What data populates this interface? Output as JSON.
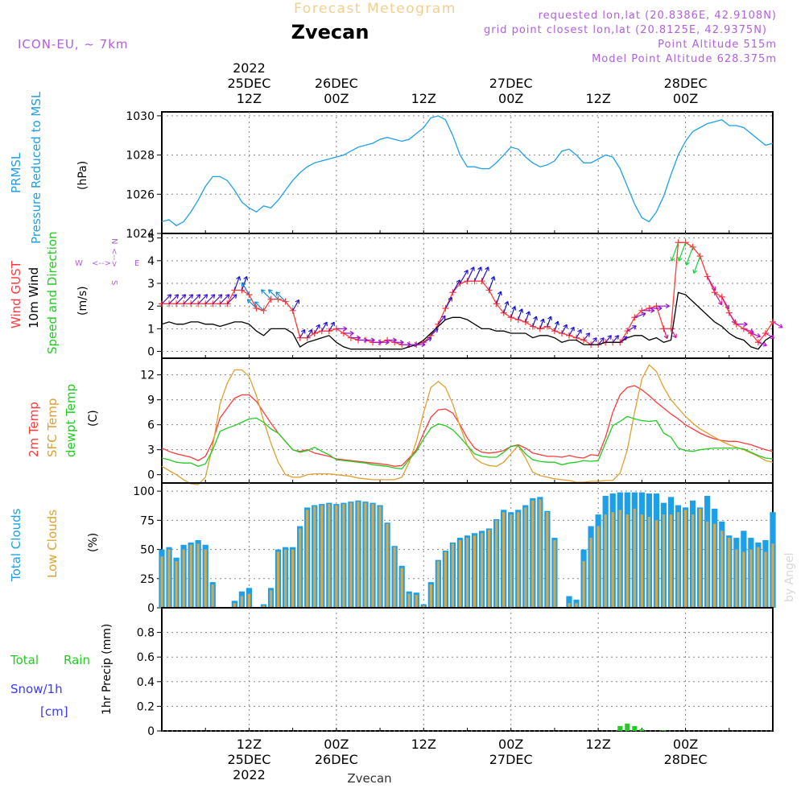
{
  "header": {
    "product_title": "Forecast Meteogram",
    "location": "Zvecan",
    "model": "ICON-EU, ~ 7km",
    "requested": "requested lon,lat (20.8386E, 42.9108N)",
    "grid_point": "grid point closest lon,lat (20.8125E, 42.9375N)",
    "point_altitude": "Point Altitude 515m",
    "model_altitude": "Model Point Altitude 628.375m",
    "footer_location": "Zvecan",
    "watermark": "by Angel"
  },
  "colors": {
    "pressure": "#1ea0e8",
    "gust": "#ff3a3a",
    "wind10m": "#000000",
    "direction": "#22cc22",
    "temp2m": "#ff3a3a",
    "sfc": "#e0a030",
    "dew": "#22cc22",
    "total_cloud": "#1ea0e8",
    "low_cloud": "#d8a848",
    "rain": "#22cc22",
    "snow": "#3a3aff",
    "header_purple": "#b060e0"
  },
  "time_axis": {
    "top_labels": [
      {
        "time": 12,
        "lines": [
          "2022",
          "25DEC",
          "12Z"
        ]
      },
      {
        "time": 24,
        "lines": [
          "26DEC",
          "00Z"
        ]
      },
      {
        "time": 36,
        "lines": [
          "12Z"
        ]
      },
      {
        "time": 48,
        "lines": [
          "27DEC",
          "00Z"
        ]
      },
      {
        "time": 60,
        "lines": [
          "12Z"
        ]
      },
      {
        "time": 72,
        "lines": [
          "28DEC",
          "00Z"
        ]
      }
    ],
    "bottom_labels": [
      {
        "time": 12,
        "lines": [
          "12Z",
          "25DEC",
          "2022"
        ]
      },
      {
        "time": 24,
        "lines": [
          "00Z",
          "26DEC"
        ]
      },
      {
        "time": 36,
        "lines": [
          "12Z"
        ]
      },
      {
        "time": 48,
        "lines": [
          "00Z",
          "27DEC"
        ]
      },
      {
        "time": 60,
        "lines": [
          "12Z"
        ]
      },
      {
        "time": 72,
        "lines": [
          "00Z",
          "28DEC"
        ]
      }
    ]
  },
  "panels": {
    "pressure": {
      "labels": [
        "PRMSL",
        "Pressure Reduced to MSL"
      ],
      "unit": "(hPa)"
    },
    "wind": {
      "labels": [
        "Wind GUST",
        "10m Wind",
        "Speed and Direction"
      ],
      "unit": "(m/s)",
      "compass": {
        "n": "N",
        "s": "S",
        "w": "W",
        "e": "E"
      }
    },
    "temp": {
      "labels": [
        "2m Temp",
        "SFC Temp",
        "dewpt Temp"
      ],
      "unit": "(C)"
    },
    "cloud": {
      "labels": [
        "Total Clouds",
        "Low Clouds"
      ],
      "unit": "(%)"
    },
    "precip": {
      "labels": [
        "Total",
        "Rain",
        "Snow/1h",
        "[cm]"
      ],
      "unit": "1hr Precip (mm)"
    }
  },
  "chart_data": [
    {
      "type": "line",
      "title": "PRMSL Pressure Reduced to MSL",
      "ylabel": "(hPa)",
      "ylim": [
        1024,
        1030.2
      ],
      "yticks": [
        1024,
        1026,
        1028,
        1030
      ],
      "x_start_hour": 0,
      "x_step_hours": 1,
      "series": [
        {
          "name": "PRMSL",
          "color": "#1ea0e8",
          "values": [
            1024.6,
            1024.7,
            1024.4,
            1024.6,
            1025.1,
            1025.7,
            1026.4,
            1026.9,
            1026.9,
            1026.7,
            1026.2,
            1025.6,
            1025.3,
            1025.1,
            1025.4,
            1025.3,
            1025.7,
            1026.2,
            1026.7,
            1027.1,
            1027.4,
            1027.6,
            1027.7,
            1027.8,
            1027.9,
            1028.0,
            1028.2,
            1028.4,
            1028.5,
            1028.6,
            1028.8,
            1028.9,
            1028.8,
            1028.7,
            1028.8,
            1029.1,
            1029.4,
            1029.9,
            1030.0,
            1029.8,
            1029.0,
            1028.0,
            1027.4,
            1027.4,
            1027.3,
            1027.3,
            1027.6,
            1028.0,
            1028.4,
            1028.3,
            1027.9,
            1027.6,
            1027.4,
            1027.5,
            1027.7,
            1028.2,
            1028.3,
            1028.0,
            1027.6,
            1027.6,
            1027.8,
            1028.0,
            1027.9,
            1027.3,
            1026.4,
            1025.5,
            1024.8,
            1024.6,
            1025.1,
            1025.9,
            1027.0,
            1028.0,
            1028.7,
            1029.2,
            1029.4,
            1029.6,
            1029.7,
            1029.8,
            1029.5,
            1029.5,
            1029.4,
            1029.1,
            1028.8,
            1028.5,
            1028.6
          ]
        }
      ]
    },
    {
      "type": "line",
      "title": "Wind GUST / 10m Wind Speed and Direction",
      "ylabel": "(m/s)",
      "ylim": [
        -0.3,
        5.2
      ],
      "yticks": [
        0,
        1,
        2,
        3,
        4,
        5
      ],
      "x_start_hour": 0,
      "x_step_hours": 1,
      "series": [
        {
          "name": "Wind GUST",
          "color": "#ff3a3a",
          "marker": "+",
          "values": [
            2.1,
            2.1,
            2.1,
            2.1,
            2.1,
            2.1,
            2.1,
            2.1,
            2.1,
            2.1,
            2.7,
            2.7,
            2.5,
            1.9,
            1.8,
            2.3,
            2.3,
            2.2,
            1.8,
            0.6,
            0.6,
            0.8,
            0.9,
            0.9,
            1.0,
            0.8,
            0.6,
            0.5,
            0.5,
            0.4,
            0.4,
            0.5,
            0.4,
            0.3,
            0.3,
            0.3,
            0.4,
            0.7,
            1.2,
            1.9,
            2.6,
            3.0,
            3.1,
            3.1,
            3.1,
            2.7,
            2.1,
            1.7,
            1.5,
            1.4,
            1.3,
            1.1,
            1.0,
            1.1,
            0.9,
            0.8,
            0.7,
            0.6,
            0.5,
            0.3,
            0.3,
            0.4,
            0.4,
            0.4,
            0.9,
            1.5,
            1.8,
            1.9,
            2.0,
            1.0,
            1.0,
            4.8,
            4.8,
            4.6,
            4.2,
            3.3,
            2.6,
            2.4,
            1.7,
            1.2,
            1.0,
            0.8,
            0.4,
            0.8,
            1.3
          ]
        },
        {
          "name": "10m Wind",
          "color": "#000000",
          "values": [
            1.2,
            1.3,
            1.2,
            1.2,
            1.3,
            1.3,
            1.2,
            1.2,
            1.1,
            1.2,
            1.3,
            1.3,
            1.2,
            0.9,
            0.7,
            1.0,
            1.0,
            1.0,
            0.8,
            0.2,
            0.4,
            0.5,
            0.6,
            0.7,
            0.4,
            0.2,
            0.1,
            0.1,
            0.1,
            0.1,
            0.1,
            0.1,
            0.1,
            0.1,
            0.2,
            0.3,
            0.5,
            0.8,
            1.1,
            1.4,
            1.5,
            1.5,
            1.4,
            1.2,
            1.0,
            1.0,
            0.9,
            0.9,
            0.8,
            0.8,
            0.8,
            0.6,
            0.7,
            0.7,
            0.6,
            0.4,
            0.5,
            0.5,
            0.3,
            0.3,
            0.3,
            0.4,
            0.4,
            0.4,
            0.6,
            0.7,
            0.7,
            0.5,
            0.6,
            0.4,
            0.5,
            2.6,
            2.5,
            2.2,
            1.9,
            1.6,
            1.3,
            1.1,
            0.8,
            0.6,
            0.5,
            0.2,
            0.1,
            0.5,
            0.7
          ]
        }
      ],
      "direction_arrows_deg": [
        225,
        225,
        225,
        225,
        225,
        225,
        225,
        225,
        225,
        225,
        200,
        200,
        150,
        135,
        135,
        135,
        135,
        135,
        210,
        210,
        210,
        210,
        210,
        210,
        270,
        270,
        270,
        270,
        270,
        270,
        270,
        270,
        270,
        270,
        270,
        270,
        240,
        225,
        220,
        210,
        210,
        210,
        205,
        205,
        205,
        200,
        200,
        200,
        200,
        200,
        200,
        200,
        200,
        200,
        200,
        210,
        210,
        210,
        220,
        220,
        220,
        220,
        220,
        230,
        240,
        250,
        270,
        270,
        270,
        340,
        330,
        20,
        20,
        20,
        20,
        330,
        330,
        330,
        330,
        270,
        290,
        290,
        290,
        300,
        300
      ]
    },
    {
      "type": "line",
      "title": "2m Temp / SFC Temp / dewpt Temp",
      "ylabel": "(C)",
      "ylim": [
        -1,
        14
      ],
      "yticks": [
        0,
        3,
        6,
        9,
        12
      ],
      "x_start_hour": 0,
      "x_step_hours": 1,
      "series": [
        {
          "name": "2m Temp",
          "color": "#ff3a3a",
          "values": [
            3.2,
            2.8,
            2.5,
            2.3,
            2.1,
            1.7,
            2.2,
            4.0,
            6.8,
            8.0,
            9.2,
            9.6,
            9.6,
            8.8,
            7.5,
            6.2,
            5.0,
            4.0,
            3.0,
            2.8,
            3.0,
            2.6,
            2.4,
            2.2,
            1.9,
            1.8,
            1.7,
            1.6,
            1.5,
            1.4,
            1.3,
            1.2,
            1.0,
            1.1,
            2.0,
            3.0,
            5.0,
            6.9,
            7.8,
            7.9,
            7.4,
            6.0,
            4.4,
            3.2,
            2.7,
            2.6,
            2.7,
            2.9,
            3.4,
            3.6,
            3.2,
            2.6,
            2.4,
            2.2,
            2.2,
            2.1,
            2.3,
            2.1,
            2.0,
            2.4,
            2.3,
            4.5,
            7.5,
            9.6,
            10.5,
            10.7,
            10.2,
            9.5,
            8.7,
            8.0,
            7.3,
            6.7,
            6.0,
            5.5,
            5.0,
            4.6,
            4.3,
            4.1,
            4.0,
            4.0,
            3.8,
            3.6,
            3.3,
            3.0,
            2.8
          ]
        },
        {
          "name": "SFC Temp",
          "color": "#e0a030",
          "values": [
            1.0,
            0.5,
            0.0,
            -0.6,
            -1.1,
            -1.2,
            -0.3,
            3.5,
            8.5,
            11.0,
            12.6,
            12.6,
            11.8,
            9.5,
            6.5,
            3.8,
            1.5,
            0.0,
            -0.3,
            -0.3,
            0.0,
            0.1,
            0.1,
            0.1,
            0.0,
            -0.1,
            -0.2,
            -0.4,
            -0.5,
            -0.6,
            -0.6,
            -0.6,
            -0.6,
            -0.3,
            1.5,
            4.0,
            7.5,
            10.5,
            11.2,
            10.5,
            8.5,
            5.8,
            3.5,
            2.0,
            1.4,
            1.1,
            1.0,
            1.5,
            2.5,
            3.5,
            2.0,
            0.3,
            -0.1,
            -0.3,
            -0.5,
            -0.6,
            -0.7,
            -0.9,
            -0.9,
            -0.8,
            -0.8,
            -0.7,
            -0.7,
            0.2,
            3.0,
            7.5,
            11.5,
            13.2,
            12.4,
            10.5,
            9.0,
            8.0,
            7.0,
            6.2,
            5.5,
            5.0,
            4.5,
            4.0,
            3.6,
            3.3,
            3.0,
            2.6,
            2.2,
            1.7,
            1.5
          ]
        },
        {
          "name": "dewpt Temp",
          "color": "#22cc22",
          "values": [
            2.0,
            1.8,
            1.5,
            1.4,
            1.4,
            1.0,
            1.3,
            3.0,
            5.2,
            5.6,
            5.9,
            6.3,
            6.7,
            6.8,
            6.3,
            5.5,
            5.0,
            4.0,
            3.0,
            2.7,
            2.9,
            3.3,
            2.8,
            2.4,
            1.8,
            1.7,
            1.6,
            1.5,
            1.4,
            1.2,
            1.1,
            1.0,
            0.8,
            0.7,
            1.8,
            2.8,
            4.3,
            5.6,
            6.1,
            5.9,
            5.4,
            4.5,
            3.5,
            2.5,
            2.2,
            2.1,
            2.1,
            2.7,
            3.4,
            3.5,
            2.5,
            1.8,
            1.6,
            1.5,
            1.5,
            1.2,
            1.4,
            1.5,
            1.7,
            1.6,
            1.7,
            3.8,
            5.9,
            6.4,
            7.0,
            6.7,
            6.5,
            6.4,
            6.5,
            5.0,
            4.5,
            3.2,
            2.9,
            2.8,
            3.0,
            3.1,
            3.2,
            3.2,
            3.2,
            3.2,
            3.1,
            2.7,
            2.3,
            2.0,
            1.9
          ]
        }
      ]
    },
    {
      "type": "bar",
      "title": "Total Clouds / Low Clouds",
      "ylabel": "(%)",
      "ylim": [
        0,
        107
      ],
      "yticks": [
        0,
        25,
        50,
        75,
        100
      ],
      "x_start_hour": 0,
      "x_step_hours": 1,
      "series": [
        {
          "name": "Total Clouds",
          "color": "#1ea0e8",
          "values": [
            50,
            52,
            43,
            54,
            56,
            58,
            54,
            22,
            0,
            0,
            6,
            14,
            17,
            0,
            3,
            17,
            50,
            52,
            52,
            70,
            86,
            88,
            89,
            90,
            89,
            90,
            91,
            92,
            91,
            90,
            88,
            73,
            53,
            36,
            14,
            13,
            3,
            22,
            41,
            49,
            56,
            60,
            62,
            64,
            66,
            68,
            76,
            84,
            82,
            84,
            88,
            94,
            95,
            83,
            60,
            0,
            10,
            7,
            50,
            70,
            80,
            96,
            98,
            99,
            99,
            99,
            99,
            98,
            98,
            90,
            95,
            88,
            86,
            92,
            86,
            96,
            85,
            74,
            62,
            60,
            66,
            60,
            56,
            58,
            82
          ]
        },
        {
          "name": "Low Clouds",
          "color": "#d8a848",
          "values": [
            44,
            50,
            40,
            50,
            54,
            55,
            50,
            20,
            0,
            0,
            4,
            10,
            12,
            0,
            2,
            15,
            48,
            50,
            50,
            68,
            84,
            87,
            88,
            89,
            88,
            89,
            90,
            91,
            90,
            89,
            87,
            72,
            52,
            34,
            12,
            11,
            2,
            20,
            40,
            48,
            55,
            58,
            60,
            62,
            64,
            67,
            75,
            82,
            80,
            82,
            86,
            92,
            93,
            82,
            58,
            0,
            4,
            4,
            40,
            60,
            70,
            80,
            82,
            84,
            80,
            85,
            80,
            78,
            75,
            80,
            80,
            82,
            84,
            80,
            85,
            74,
            72,
            66,
            60,
            50,
            48,
            50,
            52,
            48,
            55
          ]
        }
      ]
    },
    {
      "type": "bar",
      "title": "1hr Precip",
      "ylabel": "1hr Precip (mm)",
      "ylim": [
        0,
        1.0
      ],
      "yticks": [
        0,
        0.2,
        0.4,
        0.6,
        0.8
      ],
      "series": [
        {
          "name": "Total Rain",
          "color": "#22cc22",
          "points": [
            {
              "hour": 63,
              "value": 0.04
            },
            {
              "hour": 64,
              "value": 0.06
            },
            {
              "hour": 65,
              "value": 0.04
            },
            {
              "hour": 66,
              "value": 0.015
            },
            {
              "hour": 69,
              "value": 0.005
            }
          ]
        },
        {
          "name": "Snow/1h",
          "color": "#3a3aff",
          "points": []
        }
      ]
    }
  ]
}
